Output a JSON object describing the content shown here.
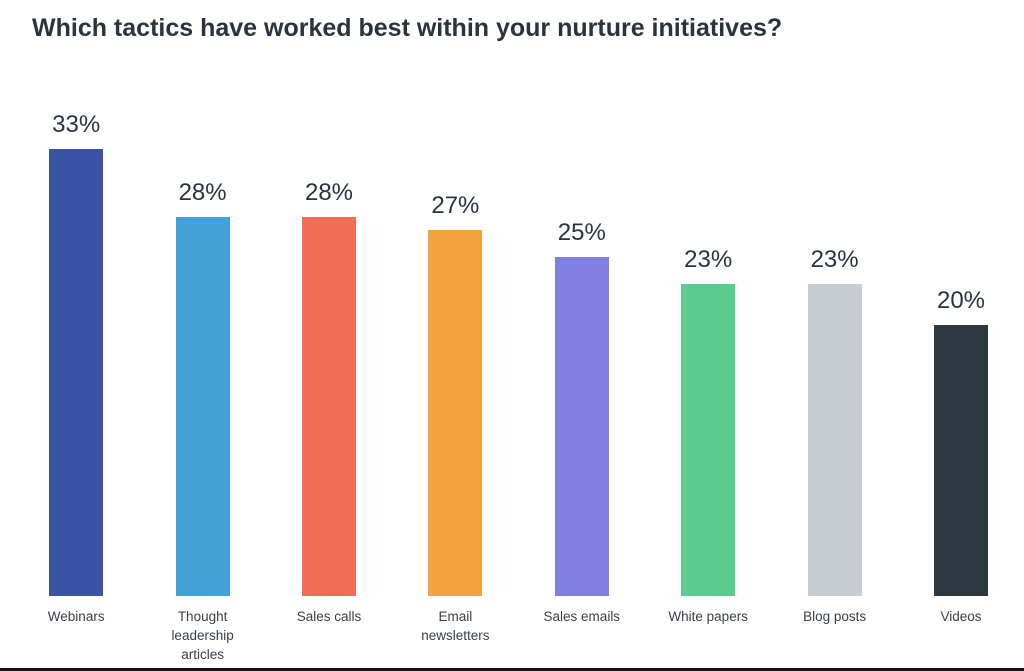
{
  "chart_data": {
    "type": "bar",
    "title": "Which tactics have worked best within your nurture initiatives?",
    "categories": [
      "Webinars",
      "Thought leadership articles",
      "Sales calls",
      "Email newsletters",
      "Sales emails",
      "White papers",
      "Blog posts",
      "Videos"
    ],
    "values": [
      33,
      28,
      28,
      27,
      25,
      23,
      23,
      20
    ],
    "value_labels": [
      "33%",
      "28%",
      "28%",
      "27%",
      "25%",
      "23%",
      "23%",
      "20%"
    ],
    "colors": [
      "#3a53a4",
      "#43a0d9",
      "#ef6e55",
      "#f4a340",
      "#8080e2",
      "#5bcc8e",
      "#c7cbd2",
      "#2e3940"
    ]
  }
}
